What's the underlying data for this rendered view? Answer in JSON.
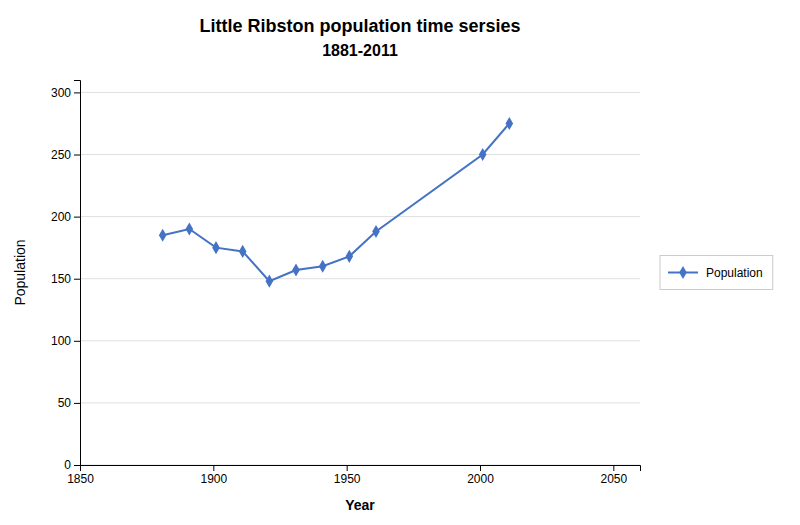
{
  "chart_data": {
    "type": "line",
    "title": "Little Ribston population time sersies",
    "subtitle": "1881-2011",
    "x_label": "Year",
    "y_label": "Population",
    "x": [
      1881,
      1891,
      1901,
      1911,
      1921,
      1931,
      1941,
      1951,
      1961,
      2001,
      2011
    ],
    "series": [
      {
        "name": "Population",
        "color": "#4472C4",
        "marker": "diamond",
        "values": [
          185,
          190,
          175,
          172,
          148,
          157,
          160,
          168,
          188,
          250,
          275
        ]
      }
    ],
    "xlim": [
      1850,
      2060
    ],
    "xticks": [
      1850,
      1900,
      1950,
      2000,
      2050
    ],
    "ylim": [
      0,
      310
    ],
    "yticks": [
      0,
      50,
      100,
      150,
      200,
      250,
      300
    ],
    "grid": true,
    "legend": "right"
  }
}
